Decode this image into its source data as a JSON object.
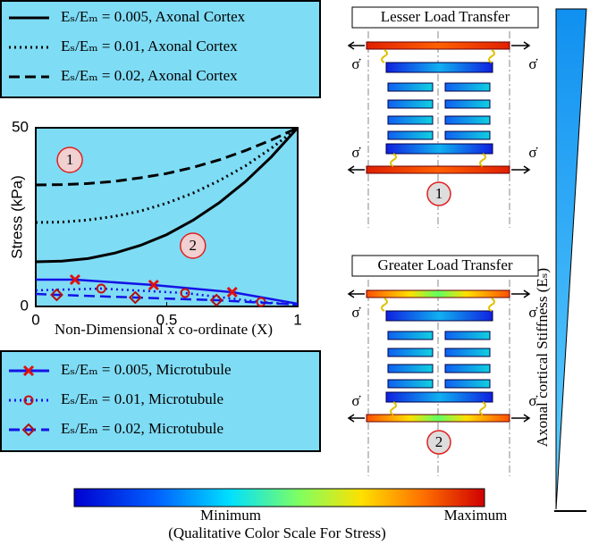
{
  "chart_data": {
    "type": "line",
    "y_label": "Stress (kPa)",
    "x_label": "Non-Dimensional x co-ordinate (X)",
    "xlim": [
      0,
      1
    ],
    "xticks": [
      0,
      0.5,
      1
    ],
    "ylim": [
      0,
      50
    ],
    "yticks": [
      0,
      50
    ],
    "annotations": [
      "1",
      "2"
    ],
    "series": [
      {
        "name": "Eₛ/Eₘ = 0.005, Axonal Cortex",
        "color": "#000000",
        "dash": "solid",
        "x": [
          0,
          0.1,
          0.2,
          0.3,
          0.4,
          0.5,
          0.6,
          0.7,
          0.8,
          0.9,
          1
        ],
        "values": [
          12.5,
          12.7,
          13.4,
          14.9,
          17.1,
          20.1,
          24.1,
          29.0,
          34.9,
          41.9,
          50
        ]
      },
      {
        "name": "Eₛ/Eₘ = 0.01, Axonal Cortex",
        "color": "#000000",
        "dash": "dotted",
        "x": [
          0,
          0.1,
          0.2,
          0.3,
          0.4,
          0.5,
          0.6,
          0.7,
          0.8,
          0.9,
          1
        ],
        "values": [
          23.5,
          23.6,
          24.2,
          25.2,
          26.7,
          28.9,
          31.7,
          35.2,
          39.3,
          44.3,
          50
        ]
      },
      {
        "name": "Eₛ/Eₘ = 0.02, Axonal Cortex",
        "color": "#000000",
        "dash": "dashed",
        "x": [
          0,
          0.1,
          0.2,
          0.3,
          0.4,
          0.5,
          0.6,
          0.7,
          0.8,
          0.9,
          1
        ],
        "values": [
          34,
          34.1,
          34.4,
          35.0,
          36.0,
          37.2,
          38.9,
          41.0,
          43.6,
          46.6,
          50
        ]
      },
      {
        "name": "Eₛ/Eₘ = 0.005, Microtubule",
        "color": "#1414e6",
        "dash": "solid",
        "marker": "x",
        "marker_color": "#e01010",
        "x": [
          0,
          0.15,
          0.45,
          0.75,
          1
        ],
        "values": [
          7.5,
          7.5,
          6,
          4,
          0.75
        ]
      },
      {
        "name": "Eₛ/Eₘ = 0.01, Microtubule",
        "color": "#1414e6",
        "dash": "dotted",
        "marker": "circle",
        "marker_color": "#c81010",
        "x": [
          0,
          0.25,
          0.57,
          0.86,
          1
        ],
        "values": [
          4.5,
          5,
          3.75,
          1.25,
          0.5
        ]
      },
      {
        "name": "Eₛ/Eₘ = 0.02, Microtubule",
        "color": "#1414e6",
        "dash": "dashed",
        "marker": "diamond",
        "marker_color": "#b01010",
        "x": [
          0,
          0.08,
          0.38,
          0.69,
          1
        ],
        "values": [
          3.5,
          3.25,
          2.5,
          1.75,
          0.5
        ]
      }
    ]
  },
  "panels": [
    {
      "title": "Lesser Load Transfer",
      "number": "1",
      "stress_labels": [
        "σ̇",
        "σ̇",
        "σ̇",
        "σ̇"
      ]
    },
    {
      "title": "Greater Load Transfer",
      "number": "2",
      "stress_labels": [
        "σ̇",
        "σ̇",
        "σ̇",
        "σ̇"
      ]
    }
  ],
  "stiffness_label": "Axonal cortical Stiffness (Eₛ)",
  "color_scale": {
    "min_label": "Minimum",
    "max_label": "Maximum",
    "caption": "(Qualitative Color Scale For Stress)"
  }
}
